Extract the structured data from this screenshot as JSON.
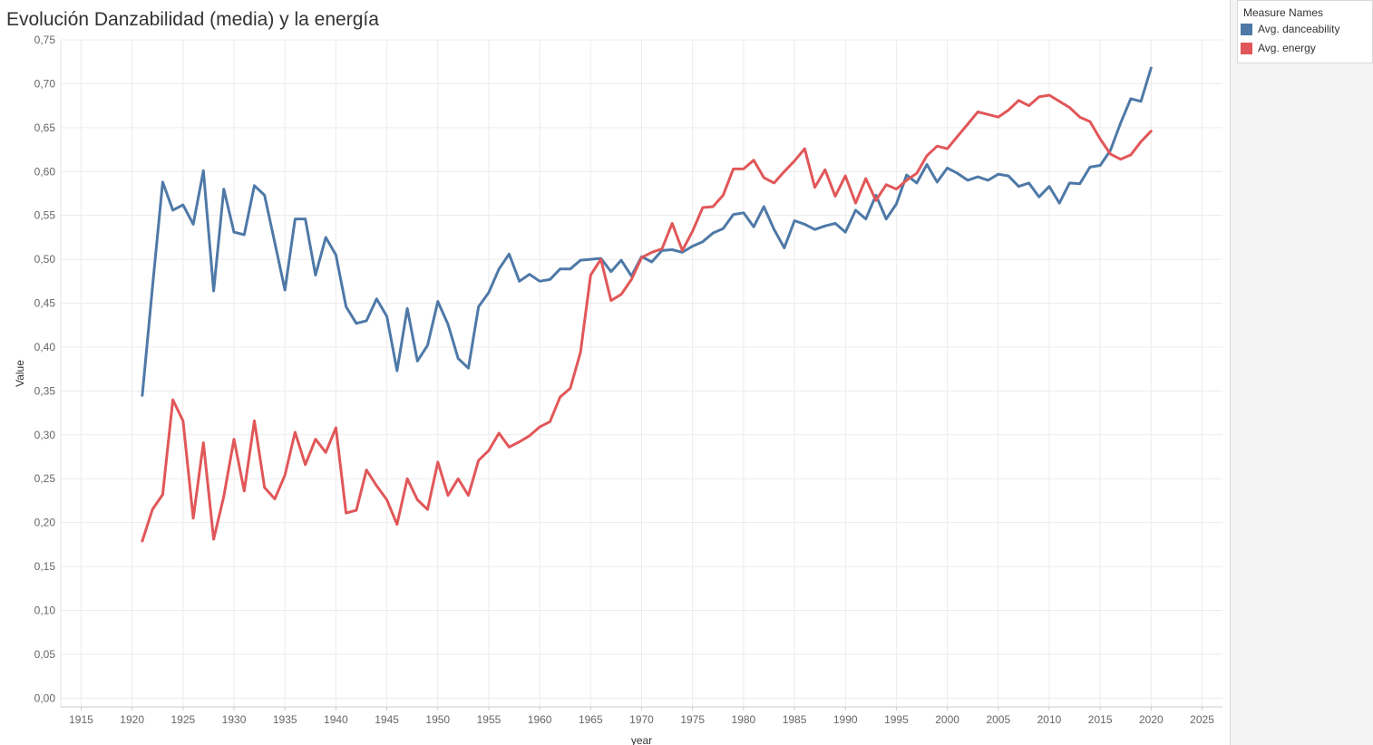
{
  "title": "Evolución Danzabilidad (media) y la energía",
  "legend": {
    "title": "Measure Names",
    "items": [
      {
        "label": "Avg. danceability",
        "color": "#4e79a7"
      },
      {
        "label": "Avg. energy",
        "color": "#e15759"
      }
    ]
  },
  "chart_data": {
    "type": "line",
    "title": "Evolución Danzabilidad (media) y la energía",
    "xlabel": "year",
    "ylabel": "Value",
    "xlim": [
      1913,
      2027
    ],
    "ylim": [
      -0.01,
      0.75
    ],
    "x_ticks": [
      1915,
      1920,
      1925,
      1930,
      1935,
      1940,
      1945,
      1950,
      1955,
      1960,
      1965,
      1970,
      1975,
      1980,
      1985,
      1990,
      1995,
      2000,
      2005,
      2010,
      2015,
      2020,
      2025
    ],
    "y_ticks": [
      {
        "value": 0.0,
        "label": "0,00"
      },
      {
        "value": 0.05,
        "label": "0,05"
      },
      {
        "value": 0.1,
        "label": "0,10"
      },
      {
        "value": 0.15,
        "label": "0,15"
      },
      {
        "value": 0.2,
        "label": "0,20"
      },
      {
        "value": 0.25,
        "label": "0,25"
      },
      {
        "value": 0.3,
        "label": "0,30"
      },
      {
        "value": 0.35,
        "label": "0,35"
      },
      {
        "value": 0.4,
        "label": "0,40"
      },
      {
        "value": 0.45,
        "label": "0,45"
      },
      {
        "value": 0.5,
        "label": "0,50"
      },
      {
        "value": 0.55,
        "label": "0,55"
      },
      {
        "value": 0.6,
        "label": "0,60"
      },
      {
        "value": 0.65,
        "label": "0,65"
      },
      {
        "value": 0.7,
        "label": "0,70"
      },
      {
        "value": 0.75,
        "label": "0,75"
      }
    ],
    "grid": true,
    "legend_position": "top-right",
    "x": [
      1921,
      1922,
      1923,
      1924,
      1925,
      1926,
      1927,
      1928,
      1929,
      1930,
      1931,
      1932,
      1933,
      1934,
      1935,
      1936,
      1937,
      1938,
      1939,
      1940,
      1941,
      1942,
      1943,
      1944,
      1945,
      1946,
      1947,
      1948,
      1949,
      1950,
      1951,
      1952,
      1953,
      1954,
      1955,
      1956,
      1957,
      1958,
      1959,
      1960,
      1961,
      1962,
      1963,
      1964,
      1965,
      1966,
      1967,
      1968,
      1969,
      1970,
      1971,
      1972,
      1973,
      1974,
      1975,
      1976,
      1977,
      1978,
      1979,
      1980,
      1981,
      1982,
      1983,
      1984,
      1985,
      1986,
      1987,
      1988,
      1989,
      1990,
      1991,
      1992,
      1993,
      1994,
      1995,
      1996,
      1997,
      1998,
      1999,
      2000,
      2001,
      2002,
      2003,
      2004,
      2005,
      2006,
      2007,
      2008,
      2009,
      2010,
      2011,
      2012,
      2013,
      2014,
      2015,
      2016,
      2017,
      2018,
      2019,
      2020
    ],
    "series": [
      {
        "name": "Avg. danceability",
        "color": "#4e79a7",
        "values": [
          0.345,
          0.468,
          0.588,
          0.556,
          0.562,
          0.54,
          0.601,
          0.464,
          0.58,
          0.531,
          0.528,
          0.584,
          0.573,
          0.519,
          0.465,
          0.546,
          0.546,
          0.482,
          0.525,
          0.505,
          0.446,
          0.427,
          0.43,
          0.455,
          0.435,
          0.373,
          0.444,
          0.384,
          0.402,
          0.452,
          0.426,
          0.387,
          0.376,
          0.446,
          0.462,
          0.489,
          0.506,
          0.475,
          0.483,
          0.475,
          0.477,
          0.489,
          0.489,
          0.499,
          0.5,
          0.501,
          0.486,
          0.499,
          0.481,
          0.503,
          0.497,
          0.51,
          0.511,
          0.508,
          0.515,
          0.52,
          0.53,
          0.535,
          0.551,
          0.553,
          0.537,
          0.56,
          0.534,
          0.513,
          0.544,
          0.54,
          0.534,
          0.538,
          0.541,
          0.531,
          0.556,
          0.546,
          0.573,
          0.546,
          0.563,
          0.596,
          0.587,
          0.608,
          0.588,
          0.604,
          0.598,
          0.59,
          0.594,
          0.59,
          0.597,
          0.595,
          0.583,
          0.587,
          0.571,
          0.583,
          0.564,
          0.587,
          0.586,
          0.605,
          0.607,
          0.624,
          0.655,
          0.683,
          0.68,
          0.718
        ]
      },
      {
        "name": "Avg. energy",
        "color": "#e15759",
        "values": [
          0.179,
          0.215,
          0.232,
          0.34,
          0.316,
          0.205,
          0.291,
          0.181,
          0.23,
          0.295,
          0.236,
          0.316,
          0.24,
          0.227,
          0.254,
          0.303,
          0.266,
          0.295,
          0.28,
          0.308,
          0.211,
          0.214,
          0.26,
          0.242,
          0.226,
          0.198,
          0.25,
          0.226,
          0.215,
          0.269,
          0.231,
          0.25,
          0.231,
          0.271,
          0.282,
          0.302,
          0.286,
          0.292,
          0.299,
          0.309,
          0.315,
          0.343,
          0.353,
          0.394,
          0.482,
          0.5,
          0.453,
          0.46,
          0.477,
          0.502,
          0.508,
          0.512,
          0.541,
          0.51,
          0.532,
          0.559,
          0.56,
          0.573,
          0.603,
          0.603,
          0.613,
          0.593,
          0.587,
          0.6,
          0.612,
          0.626,
          0.582,
          0.602,
          0.572,
          0.595,
          0.564,
          0.592,
          0.567,
          0.585,
          0.58,
          0.59,
          0.598,
          0.618,
          0.629,
          0.626,
          0.64,
          0.654,
          0.668,
          0.665,
          0.662,
          0.67,
          0.681,
          0.675,
          0.685,
          0.687,
          0.68,
          0.673,
          0.662,
          0.657,
          0.637,
          0.62,
          0.614,
          0.619,
          0.634,
          0.646
        ]
      }
    ]
  }
}
